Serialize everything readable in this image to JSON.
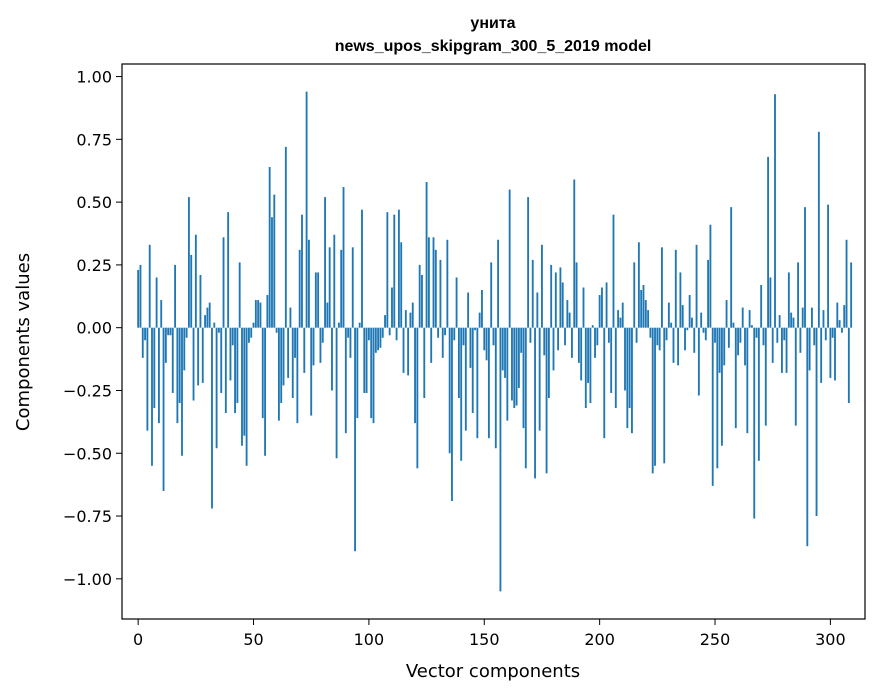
{
  "chart_data": {
    "type": "bar",
    "title_line1": "унита",
    "title_line2": "news_upos_skipgram_300_5_2019 model",
    "xlabel": "Vector components",
    "ylabel": "Components values",
    "xlim": [
      -7,
      315
    ],
    "ylim": [
      -1.16,
      1.05
    ],
    "xticks": [
      0,
      50,
      100,
      150,
      200,
      250,
      300
    ],
    "xtick_labels": [
      "0",
      "50",
      "100",
      "150",
      "200",
      "250",
      "300"
    ],
    "yticks": [
      1.0,
      0.75,
      0.5,
      0.25,
      0.0,
      -0.25,
      -0.5,
      -0.75,
      -1.0
    ],
    "ytick_labels": [
      "1.00",
      "0.75",
      "0.50",
      "0.25",
      "0.00",
      "−0.25",
      "−0.50",
      "−0.75",
      "−1.00"
    ],
    "grid": false,
    "bar_color": "#1f77b4",
    "values": [
      0.23,
      0.25,
      -0.12,
      -0.05,
      -0.41,
      0.33,
      -0.55,
      -0.32,
      0.2,
      -0.38,
      0.11,
      -0.65,
      -0.14,
      -0.03,
      -0.03,
      -0.26,
      0.25,
      -0.38,
      -0.3,
      -0.51,
      -0.17,
      -0.04,
      0.52,
      0.29,
      -0.29,
      0.37,
      -0.23,
      0.21,
      -0.22,
      0.05,
      0.08,
      0.1,
      -0.72,
      0.02,
      -0.48,
      -0.02,
      -0.26,
      0.36,
      -0.34,
      0.46,
      -0.21,
      -0.07,
      -0.34,
      -0.3,
      0.26,
      -0.47,
      -0.43,
      -0.55,
      -0.06,
      -0.04,
      0.02,
      0.11,
      0.11,
      0.1,
      -0.36,
      -0.51,
      0.13,
      0.64,
      0.44,
      0.53,
      -0.02,
      -0.37,
      -0.3,
      -0.23,
      0.72,
      -0.2,
      0.08,
      -0.28,
      -0.12,
      -0.38,
      0.31,
      0.45,
      -0.18,
      0.94,
      0.35,
      -0.35,
      -0.15,
      0.22,
      0.22,
      -0.14,
      -0.06,
      0.52,
      0.1,
      0.32,
      -0.25,
      0.37,
      -0.52,
      0.02,
      0.31,
      0.56,
      -0.42,
      -0.04,
      -0.12,
      0.32,
      -0.89,
      -0.36,
      0.02,
      0.47,
      -0.26,
      -0.26,
      -0.05,
      -0.36,
      -0.38,
      -0.1,
      -0.09,
      -0.08,
      -0.04,
      0.05,
      0.46,
      -0.03,
      0.16,
      0.45,
      -0.05,
      0.47,
      0.34,
      -0.18,
      0.07,
      -0.19,
      0.06,
      0.1,
      -0.38,
      -0.56,
      0.25,
      0.21,
      -0.28,
      0.58,
      0.36,
      -0.14,
      0.36,
      0.31,
      -0.04,
      0.27,
      -0.12,
      -0.03,
      0.35,
      -0.5,
      -0.69,
      -0.05,
      0.2,
      -0.28,
      -0.53,
      -0.07,
      -0.41,
      0.14,
      -0.16,
      -0.34,
      -0.01,
      -0.44,
      0.06,
      0.15,
      -0.09,
      -0.13,
      -0.44,
      0.26,
      -0.07,
      -0.48,
      0.35,
      -1.05,
      -0.17,
      -0.2,
      -0.37,
      0.55,
      -0.29,
      -0.32,
      -0.31,
      -0.24,
      -0.1,
      -0.4,
      -0.56,
      0.52,
      -0.06,
      0.27,
      -0.6,
      0.14,
      -0.41,
      0.33,
      -0.11,
      -0.58,
      -0.28,
      0.25,
      -0.17,
      0.22,
      -0.09,
      0.24,
      0.18,
      -0.07,
      0.11,
      0.06,
      -0.12,
      0.59,
      0.26,
      -0.14,
      -0.21,
      0.16,
      -0.32,
      -0.22,
      -0.3,
      0.01,
      -0.12,
      -0.07,
      0.13,
      0.16,
      -0.44,
      0.18,
      -0.06,
      -0.26,
      0.45,
      -0.32,
      0.07,
      0.04,
      0.1,
      -0.25,
      -0.4,
      -0.32,
      -0.42,
      0.26,
      -0.06,
      0.34,
      0.15,
      0.17,
      0.11,
      0.07,
      -0.04,
      -0.58,
      -0.55,
      -0.07,
      -0.09,
      0.32,
      -0.54,
      -0.05,
      0.1,
      0.02,
      -0.14,
      0.31,
      -0.15,
      0.22,
      0.09,
      -0.09,
      -0.01,
      0.13,
      0.04,
      -0.1,
      0.33,
      -0.27,
      0.06,
      -0.02,
      -0.05,
      0.27,
      0.41,
      -0.63,
      -0.06,
      -0.56,
      -0.18,
      -0.47,
      -0.15,
      0.11,
      -0.08,
      0.48,
      0.02,
      -0.4,
      -0.11,
      -0.06,
      0.08,
      -0.15,
      -0.42,
      0.07,
      0.01,
      -0.76,
      -0.04,
      -0.53,
      0.17,
      -0.07,
      -0.39,
      0.68,
      0.2,
      -0.14,
      0.93,
      -0.06,
      0.05,
      -0.18,
      -0.05,
      -0.18,
      0.22,
      0.06,
      0.04,
      -0.39,
      0.26,
      -0.1,
      0.08,
      0.48,
      -0.87,
      -0.17,
      0.08,
      -0.07,
      -0.75,
      0.78,
      -0.22,
      0.07,
      -0.05,
      0.49,
      -0.2,
      -0.04,
      -0.21,
      0.1,
      0.03,
      -0.02,
      0.09,
      0.35,
      -0.3,
      0.26
    ]
  }
}
